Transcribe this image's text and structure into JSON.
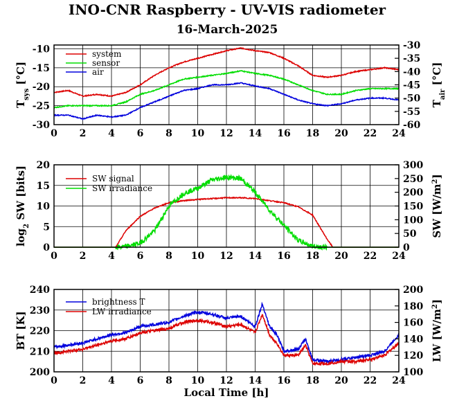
{
  "title": "INO-CNR Raspberry - UV-VIS radiometer",
  "subtitle": "16-March-2025",
  "chart_data": [
    {
      "type": "line",
      "x": [
        0,
        1,
        2,
        3,
        4,
        5,
        6,
        7,
        8,
        9,
        10,
        11,
        12,
        13,
        14,
        15,
        16,
        17,
        18,
        19,
        20,
        21,
        22,
        23,
        24
      ],
      "xticks": [
        "0",
        "2",
        "4",
        "6",
        "8",
        "10",
        "12",
        "14",
        "16",
        "18",
        "20",
        "22",
        "24"
      ],
      "xlim": [
        0,
        24
      ],
      "ylabel": "T_sys [°C]",
      "ylim": [
        -30,
        -9
      ],
      "yticks": [
        "-30",
        "-25",
        "-20",
        "-15",
        "-10"
      ],
      "y2label": "T_air [°C]",
      "y2lim": [
        -60,
        -30
      ],
      "y2ticks": [
        "-60",
        "-55",
        "-50",
        "-45",
        "-40",
        "-35",
        "-30"
      ],
      "series": [
        {
          "name": "system",
          "color": "#dd0000",
          "axis": "left",
          "values": [
            -21.5,
            -21,
            -22.5,
            -22,
            -22.5,
            -21.5,
            -19.5,
            -17,
            -15,
            -13.5,
            -12.5,
            -11.5,
            -10.5,
            -9.8,
            -10.5,
            -11,
            -12.5,
            -14.5,
            -17,
            -17.5,
            -17,
            -16,
            -15.5,
            -15,
            -15.5
          ]
        },
        {
          "name": "sensor",
          "color": "#00dd00",
          "axis": "left",
          "values": [
            -25.5,
            -25,
            -25,
            -25,
            -25,
            -24,
            -22,
            -21,
            -19.5,
            -18,
            -17.5,
            -17,
            -16.5,
            -15.8,
            -16.5,
            -17,
            -18,
            -19.5,
            -21,
            -22,
            -22,
            -21,
            -20.5,
            -20.5,
            -20.5
          ]
        },
        {
          "name": "air",
          "color": "#0000dd",
          "axis": "left",
          "values": [
            -27.5,
            -27.5,
            -28.5,
            -27.5,
            -28,
            -27.5,
            -25.5,
            -24,
            -22.5,
            -21,
            -20.5,
            -19.5,
            -19.5,
            -19,
            -19.8,
            -20.5,
            -22,
            -23.5,
            -24.5,
            -25,
            -24.5,
            -23.5,
            -23,
            -23,
            -23.5
          ]
        }
      ]
    },
    {
      "type": "line",
      "x": [
        0,
        1,
        2,
        3,
        4,
        4.3,
        5,
        6,
        7,
        8,
        9,
        10,
        11,
        12,
        13,
        14,
        15,
        16,
        17,
        18,
        19,
        19.4,
        20,
        21,
        22,
        23,
        24
      ],
      "xticks": [
        "0",
        "2",
        "4",
        "6",
        "8",
        "10",
        "12",
        "14",
        "16",
        "18",
        "20",
        "22",
        "24"
      ],
      "xlim": [
        0,
        24
      ],
      "ylabel": "log2 SW [bits]",
      "ylim": [
        0,
        20
      ],
      "yticks": [
        "0",
        "5",
        "10",
        "15",
        "20"
      ],
      "y2label": "SW [W/m2]",
      "y2lim": [
        0,
        300
      ],
      "y2ticks": [
        "0",
        "50",
        "100",
        "150",
        "200",
        "250",
        "300"
      ],
      "series": [
        {
          "name": "SW signal",
          "color": "#dd0000",
          "axis": "left",
          "values": [
            0,
            0,
            0,
            0,
            0,
            0,
            4,
            7.5,
            9.5,
            10.8,
            11.3,
            11.6,
            11.8,
            12,
            12,
            11.8,
            11.3,
            10.8,
            9.8,
            7.8,
            2,
            0,
            0,
            0,
            0,
            0,
            0
          ]
        },
        {
          "name": "SW irradiance",
          "color": "#00dd00",
          "axis": "right",
          "values": [
            0,
            0,
            0,
            0,
            0,
            0,
            2,
            15,
            60,
            150,
            195,
            215,
            245,
            255,
            250,
            200,
            135,
            80,
            25,
            3,
            0,
            0,
            0,
            0,
            0,
            0,
            0
          ]
        }
      ]
    },
    {
      "type": "line",
      "x": [
        0,
        1,
        2,
        3,
        4,
        5,
        6,
        7,
        8,
        9,
        10,
        11,
        12,
        13,
        14,
        14.5,
        15,
        15.5,
        16,
        17,
        17.5,
        18,
        19,
        20,
        21,
        22,
        23,
        24
      ],
      "xticks": [
        "0",
        "2",
        "4",
        "6",
        "8",
        "10",
        "12",
        "14",
        "16",
        "18",
        "20",
        "22",
        "24"
      ],
      "xlim": [
        0,
        24
      ],
      "xlabel": "Local Time [h]",
      "ylabel": "BT [K]",
      "ylim": [
        200,
        240
      ],
      "yticks": [
        "200",
        "210",
        "220",
        "230",
        "240"
      ],
      "y2label": "LW [W/m2]",
      "y2lim": [
        100,
        200
      ],
      "y2ticks": [
        "100",
        "120",
        "140",
        "160",
        "180",
        "200"
      ],
      "series": [
        {
          "name": "brightness T",
          "color": "#0000dd",
          "axis": "left",
          "values": [
            212,
            213,
            214,
            216,
            218,
            219,
            222,
            223,
            224,
            227,
            229,
            228,
            226,
            227,
            222,
            233,
            222,
            218,
            210,
            211,
            216,
            206,
            205,
            206,
            207,
            208,
            210,
            218
          ]
        },
        {
          "name": "LW irradiance",
          "color": "#dd0000",
          "axis": "left",
          "values": [
            209,
            210,
            211,
            213,
            215,
            216,
            219,
            220,
            221,
            224,
            225,
            224,
            222,
            223,
            219,
            228,
            218,
            214,
            208,
            208,
            213,
            204,
            204,
            205,
            205,
            206,
            208,
            214
          ]
        }
      ]
    }
  ]
}
